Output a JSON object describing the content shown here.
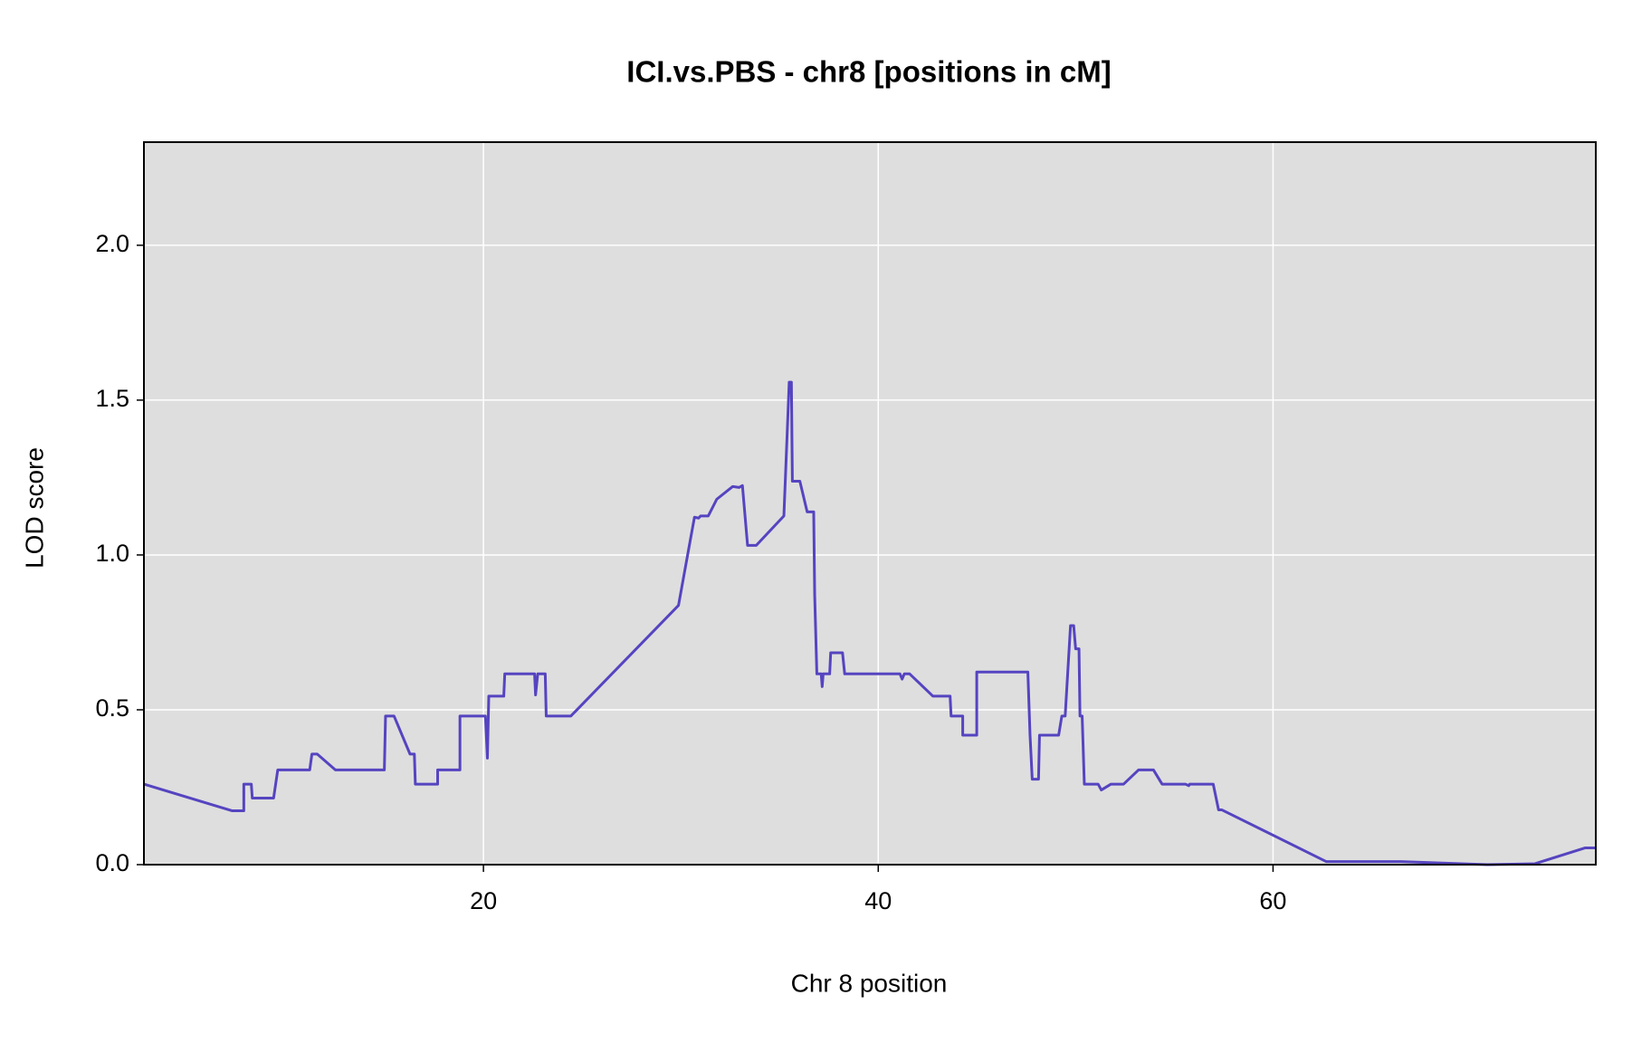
{
  "chart_data": {
    "type": "line",
    "title": "ICI.vs.PBS - chr8 [positions in cM]",
    "x_label": "Chr 8 position",
    "y_label": "LOD score",
    "xlim": [
      2.8,
      76.35
    ],
    "ylim": [
      0,
      2.333
    ],
    "xticks": [
      20,
      40,
      60
    ],
    "yticks": [
      {
        "value": 0,
        "label": "0.0"
      },
      {
        "value": 0.5,
        "label": "0.5"
      },
      {
        "value": 1,
        "label": "1.0"
      },
      {
        "value": 1.5,
        "label": "1.5"
      },
      {
        "value": 2,
        "label": "2.0"
      }
    ],
    "grid": true,
    "series": [
      {
        "color": "#5544c0",
        "x": [
          2.8,
          7.26,
          7.86,
          7.86,
          8.24,
          8.29,
          9.37,
          9.58,
          11.2,
          11.31,
          11.58,
          12.5,
          14.98,
          15.04,
          15.47,
          16.28,
          16.5,
          16.55,
          17.68,
          17.68,
          18.81,
          18.81,
          20.1,
          20.2,
          20.27,
          21.03,
          21.08,
          22.59,
          22.64,
          22.75,
          23.13,
          23.18,
          24.43,
          29.88,
          30.69,
          30.9,
          31.0,
          31.39,
          31.82,
          32.63,
          32.95,
          33.12,
          33.38,
          33.82,
          35.22,
          35.49,
          35.6,
          35.65,
          36.03,
          36.4,
          36.73,
          36.78,
          36.89,
          37.11,
          37.16,
          37.21,
          37.54,
          37.59,
          38.19,
          38.3,
          41.1,
          41.21,
          41.32,
          41.59,
          42.77,
          43.64,
          43.69,
          44.28,
          44.28,
          44.99,
          44.99,
          47.58,
          47.69,
          47.8,
          48.12,
          48.17,
          49.14,
          49.3,
          49.47,
          49.74,
          49.9,
          50.0,
          50.17,
          50.22,
          50.33,
          50.44,
          51.14,
          51.3,
          51.79,
          52.43,
          53.19,
          53.94,
          54.38,
          55.56,
          55.73,
          55.78,
          56.97,
          57.24,
          57.4,
          62.69,
          66.47,
          70.84,
          73.27,
          75.8,
          76.35
        ],
        "values": [
          0.26,
          0.174,
          0.174,
          0.26,
          0.26,
          0.215,
          0.215,
          0.306,
          0.306,
          0.357,
          0.357,
          0.306,
          0.306,
          0.48,
          0.48,
          0.357,
          0.357,
          0.26,
          0.26,
          0.306,
          0.306,
          0.48,
          0.48,
          0.344,
          0.544,
          0.544,
          0.616,
          0.616,
          0.548,
          0.616,
          0.616,
          0.48,
          0.48,
          0.837,
          1.122,
          1.119,
          1.126,
          1.126,
          1.18,
          1.221,
          1.218,
          1.224,
          1.031,
          1.031,
          1.126,
          1.558,
          1.558,
          1.238,
          1.238,
          1.139,
          1.139,
          0.871,
          0.616,
          0.616,
          0.575,
          0.616,
          0.616,
          0.684,
          0.684,
          0.616,
          0.616,
          0.599,
          0.616,
          0.616,
          0.544,
          0.544,
          0.48,
          0.48,
          0.418,
          0.418,
          0.622,
          0.622,
          0.418,
          0.276,
          0.276,
          0.418,
          0.418,
          0.48,
          0.48,
          0.772,
          0.772,
          0.697,
          0.697,
          0.48,
          0.48,
          0.26,
          0.26,
          0.241,
          0.26,
          0.26,
          0.306,
          0.306,
          0.26,
          0.26,
          0.255,
          0.26,
          0.26,
          0.177,
          0.177,
          0.01,
          0.01,
          0,
          0.003,
          0.054,
          0.054
        ]
      }
    ]
  }
}
